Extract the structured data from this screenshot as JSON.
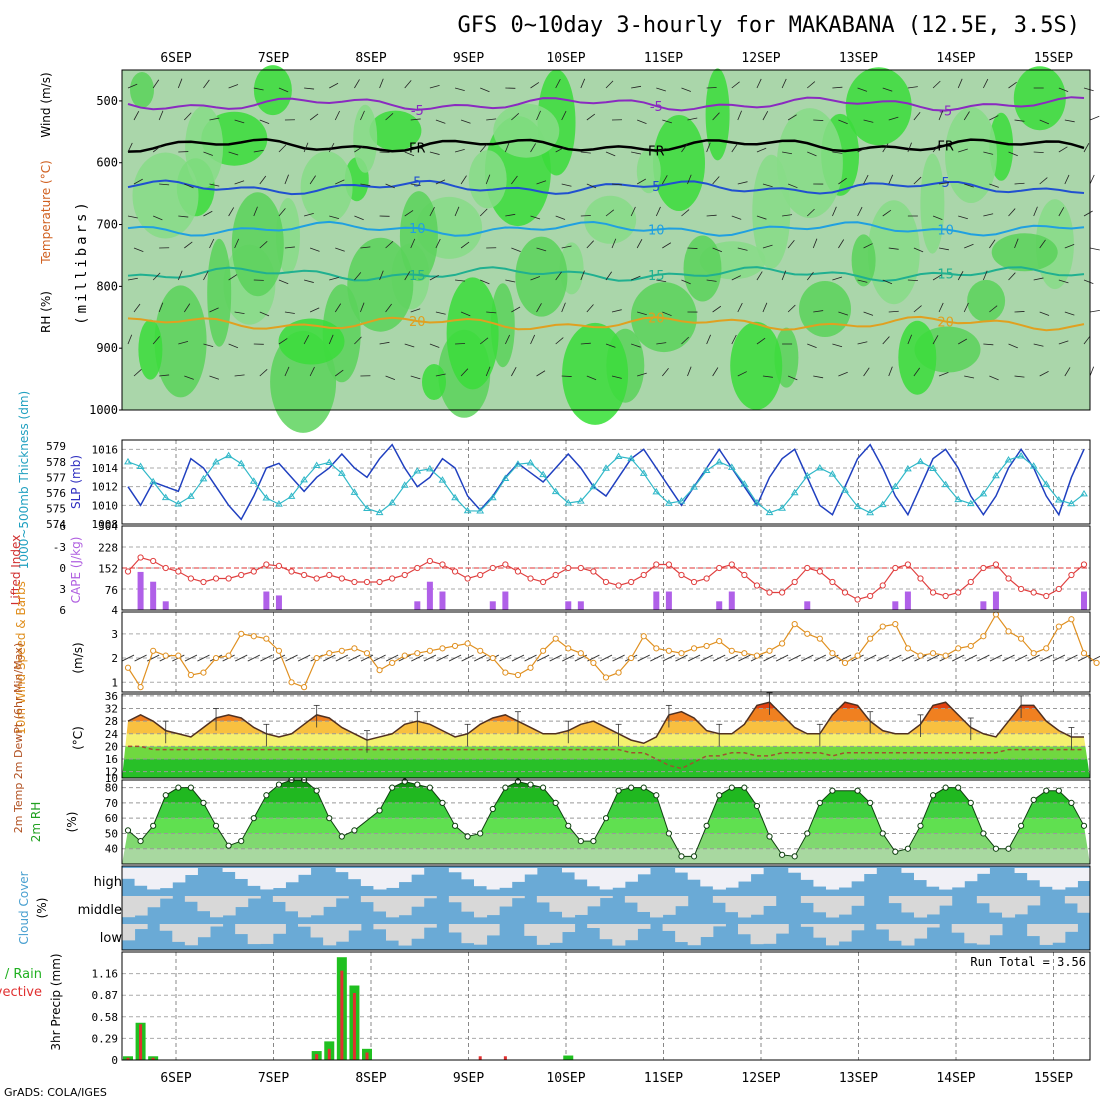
{
  "chart_data": {
    "type": "meteogram",
    "title": "GFS 0~10day 3-hourly for MAKABANA (12.5E, 3.5S)",
    "credit": "GrADS: COLA/IGES",
    "date_labels": [
      "6SEP",
      "7SEP",
      "8SEP",
      "9SEP",
      "10SEP",
      "11SEP",
      "12SEP",
      "13SEP",
      "14SEP",
      "15SEP"
    ],
    "panels": {
      "upper_air": {
        "ylabel": "(millibars)",
        "legend_rh": "RH (%)",
        "legend_temp": "Temperature (°C)",
        "legend_wind": "Wind (m/s)",
        "y_ticks": [
          "500",
          "600",
          "700",
          "800",
          "900",
          "1000"
        ],
        "ylim": [
          1000,
          450
        ],
        "isotherms": [
          {
            "label": "-5",
            "pressure": 505,
            "color": "#8a2ac0"
          },
          {
            "label": "FR",
            "pressure": 572,
            "color": "#000000"
          },
          {
            "label": "5",
            "pressure": 640,
            "color": "#2050d0"
          },
          {
            "label": "10",
            "pressure": 707,
            "color": "#20a0e0"
          },
          {
            "label": "15",
            "pressure": 780,
            "color": "#20b090"
          },
          {
            "label": "20",
            "pressure": 860,
            "color": "#e0a020"
          }
        ]
      },
      "slp_thickness": {
        "ylabel_thickness": "1000~500mb Thickness (dm)",
        "ylabel_slp": "SLP (mb)",
        "thickness_ticks": [
          "579",
          "578",
          "577",
          "576",
          "575",
          "574"
        ],
        "slp_ticks": [
          "1016",
          "1014",
          "1012",
          "1010",
          "1008"
        ],
        "thickness_ylim": [
          574,
          579.4
        ],
        "slp_ylim": [
          1008,
          1017
        ],
        "slp": [
          1012,
          1010,
          1012.5,
          1012,
          1011.5,
          1015,
          1014,
          1012,
          1010,
          1008.5,
          1011,
          1014,
          1014.5,
          1013,
          1011.5,
          1013,
          1014,
          1015.5,
          1014,
          1013,
          1015,
          1016.5,
          1014,
          1012,
          1013,
          1015,
          1014,
          1011,
          1009.5,
          1011,
          1013,
          1014.5,
          1013.5,
          1012.5,
          1014,
          1015.5,
          1014,
          1012,
          1011,
          1013,
          1015,
          1016,
          1014,
          1012,
          1010,
          1012,
          1014,
          1016,
          1014,
          1012,
          1010,
          1013,
          1015,
          1016,
          1013,
          1010,
          1009,
          1012,
          1015,
          1016.5,
          1014,
          1011,
          1009,
          1012,
          1015,
          1016,
          1014,
          1011,
          1009,
          1011,
          1014,
          1016,
          1014,
          1011,
          1009,
          1013,
          1016
        ]
      },
      "cape_li": {
        "ylabel_li": "Lifted Index",
        "ylabel_cape": "CAPE (J/kg)",
        "li_ticks": [
          "-6",
          "-3",
          "0",
          "3",
          "6"
        ],
        "cape_ticks": [
          "304",
          "228",
          "152",
          "76",
          "4"
        ],
        "li_ylim": [
          6,
          -6
        ],
        "cape_ylim": [
          4,
          304
        ],
        "li": [
          0.5,
          -1.5,
          -1,
          0,
          0.5,
          1.5,
          2,
          1.5,
          1.5,
          1,
          0.5,
          -0.5,
          -0.3,
          0.5,
          1,
          1.5,
          1,
          1.5,
          2,
          2,
          2,
          1.5,
          1,
          0,
          -1,
          -0.5,
          0.5,
          1.5,
          1,
          0,
          -0.5,
          0.5,
          1.5,
          2,
          1,
          0,
          0,
          0.5,
          2,
          2.5,
          2,
          1,
          -0.5,
          -0.5,
          1,
          2,
          1.5,
          0,
          -0.5,
          1,
          2.5,
          3.5,
          3.5,
          2,
          0,
          0.5,
          2,
          3.5,
          4.5,
          4,
          2.5,
          0,
          -0.5,
          1.5,
          3.5,
          4,
          3.5,
          2,
          0,
          -0.5,
          1.5,
          3,
          3.5,
          4,
          3,
          1,
          -0.5
        ]
      },
      "wind10m": {
        "ylabel": "10m Wind Speed & Barbs",
        "units": "(m/s)",
        "y_ticks": [
          "1",
          "2",
          "3"
        ],
        "ylim": [
          0.6,
          3.9
        ],
        "speed": [
          1.6,
          0.8,
          2.3,
          2.1,
          2.1,
          1.3,
          1.4,
          2.0,
          2.1,
          3.0,
          2.9,
          2.8,
          2.3,
          1.0,
          0.8,
          2.0,
          2.2,
          2.3,
          2.4,
          2.2,
          1.5,
          1.8,
          2.1,
          2.2,
          2.3,
          2.4,
          2.5,
          2.6,
          2.3,
          2.0,
          1.4,
          1.3,
          1.6,
          2.3,
          2.8,
          2.4,
          2.2,
          1.8,
          1.2,
          1.4,
          2.0,
          2.9,
          2.4,
          2.3,
          2.2,
          2.4,
          2.5,
          2.7,
          2.3,
          2.2,
          2.1,
          2.3,
          2.6,
          3.4,
          3.0,
          2.8,
          2.2,
          1.8,
          2.1,
          2.8,
          3.3,
          3.4,
          2.4,
          2.1,
          2.2,
          2.1,
          2.4,
          2.5,
          2.9,
          3.8,
          3.1,
          2.8,
          2.2,
          2.4,
          3.3,
          3.6,
          2.2,
          1.8
        ]
      },
      "temp2m": {
        "ylabel": "2m Temp 2m DewPt (6hr Min/Max)",
        "units": "(°C)",
        "y_ticks": [
          "36",
          "32",
          "28",
          "24",
          "20",
          "16",
          "12",
          "10"
        ],
        "ylim": [
          10,
          36.6
        ],
        "temp": [
          28,
          30,
          28,
          25,
          24,
          23,
          26,
          29,
          30,
          29,
          26,
          24,
          23,
          24,
          27,
          30,
          29,
          26,
          24,
          22,
          23,
          24,
          27,
          28,
          27,
          25,
          23,
          24,
          27,
          29,
          30,
          28,
          26,
          24,
          24,
          25,
          27,
          28,
          26,
          24,
          22,
          21,
          23,
          30,
          31,
          29,
          25,
          24,
          24,
          27,
          33,
          34,
          30,
          26,
          24,
          24,
          30,
          34,
          33,
          28,
          25,
          24,
          24,
          27,
          33,
          34,
          30,
          26,
          24,
          23,
          28,
          33,
          33,
          28,
          25,
          23,
          23
        ],
        "dewpoint": [
          20,
          20,
          19,
          19,
          19,
          19,
          19,
          19,
          19,
          19,
          19,
          19,
          19,
          19,
          19,
          19,
          19,
          19,
          19,
          19,
          19,
          19,
          19,
          19,
          19,
          19,
          19,
          19,
          19,
          19,
          19,
          19,
          19,
          19,
          19,
          19,
          19,
          19,
          19,
          19,
          18,
          18,
          16,
          14,
          13,
          15,
          17,
          17,
          18,
          18,
          17,
          17,
          18,
          18,
          18,
          18,
          17,
          18,
          18,
          18,
          18,
          18,
          18,
          18,
          18,
          18,
          18,
          18,
          18,
          18,
          19,
          19,
          19,
          19,
          19,
          19,
          19
        ]
      },
      "rh2m": {
        "ylabel": "2m RH",
        "units": "(%)",
        "y_ticks": [
          "80",
          "70",
          "60",
          "50",
          "40"
        ],
        "ylim": [
          30,
          85
        ],
        "rh": [
          52,
          45,
          55,
          75,
          80,
          80,
          70,
          55,
          42,
          45,
          60,
          75,
          82,
          85,
          85,
          78,
          60,
          48,
          52,
          65,
          80,
          84,
          82,
          80,
          70,
          55,
          48,
          50,
          66,
          80,
          84,
          82,
          80,
          70,
          55,
          45,
          45,
          60,
          78,
          80,
          80,
          75,
          50,
          35,
          35,
          55,
          75,
          80,
          80,
          68,
          48,
          36,
          35,
          50,
          70,
          78,
          78,
          70,
          50,
          38,
          40,
          55,
          75,
          80,
          80,
          70,
          50,
          40,
          40,
          55,
          72,
          78,
          78,
          70,
          55
        ]
      },
      "cloud": {
        "ylabel": "Cloud Cover",
        "units": "(%)",
        "levels": [
          "high",
          "middle",
          "low"
        ]
      },
      "precip": {
        "ylabel": "3hr Precip (mm)",
        "legend_total": "Total / Rain",
        "legend_convective": "Convective",
        "run_total": "Run Total = 3.56",
        "y_ticks": [
          "1.16",
          "0.87",
          "0.58",
          "0.29",
          "0"
        ],
        "ylim": [
          0,
          1.45
        ],
        "total": [
          0.05,
          0.5,
          0.05,
          0,
          0,
          0,
          0,
          0,
          0,
          0,
          0,
          0,
          0,
          0,
          0,
          0.12,
          0.25,
          1.38,
          1.0,
          0.15,
          0,
          0,
          0,
          0,
          0,
          0,
          0,
          0,
          0,
          0,
          0,
          0,
          0,
          0,
          0,
          0.06,
          0,
          0,
          0,
          0,
          0,
          0,
          0,
          0,
          0,
          0,
          0,
          0,
          0,
          0,
          0,
          0,
          0,
          0,
          0,
          0,
          0,
          0,
          0,
          0,
          0,
          0,
          0,
          0,
          0,
          0,
          0,
          0,
          0,
          0,
          0,
          0,
          0,
          0,
          0,
          0
        ],
        "convective": [
          0.03,
          0.48,
          0.03,
          0,
          0,
          0,
          0,
          0,
          0,
          0,
          0,
          0,
          0,
          0,
          0,
          0.08,
          0.15,
          1.2,
          0.9,
          0.1,
          0,
          0,
          0,
          0,
          0,
          0,
          0,
          0,
          0.05,
          0,
          0.05,
          0,
          0,
          0,
          0,
          0,
          0,
          0,
          0,
          0,
          0,
          0,
          0,
          0,
          0,
          0,
          0,
          0,
          0,
          0,
          0,
          0,
          0,
          0,
          0,
          0,
          0,
          0,
          0,
          0,
          0,
          0,
          0,
          0,
          0,
          0,
          0,
          0,
          0,
          0,
          0,
          0,
          0,
          0,
          0,
          0
        ]
      }
    }
  }
}
